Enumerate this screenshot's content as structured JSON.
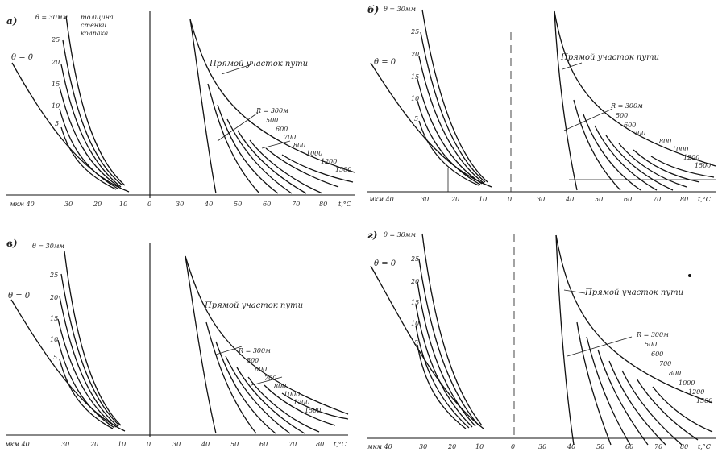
{
  "panels": [
    {
      "id": "a",
      "letter": "a)",
      "theta_label": "θ = 0",
      "wall_label": "θ = 30мм",
      "wall_note": [
        "толщина",
        "стенки",
        "колпака"
      ],
      "theta_ticks": [
        "25",
        "20",
        "15",
        "10",
        "5"
      ],
      "straight_label": "Прямой участок пути",
      "radius_labels": [
        "R = 300м",
        "500",
        "600",
        "700",
        "800",
        "1000",
        "1200",
        "1500"
      ],
      "x_left_ticks": [
        "мкм 40",
        "30",
        "20",
        "10"
      ],
      "x_center": "0",
      "x_right_ticks": [
        "30",
        "40",
        "50",
        "60",
        "70",
        "80"
      ],
      "x_right_unit": "t,°C"
    },
    {
      "id": "b",
      "letter": "б)",
      "theta_label": "θ = 0",
      "wall_label": "θ = 30мм",
      "theta_ticks": [
        "25",
        "20",
        "15",
        "10",
        "5"
      ],
      "straight_label": "Прямой участок пути",
      "radius_labels": [
        "R = 300м",
        "500",
        "600",
        "700",
        "800",
        "1000",
        "1200",
        "1500"
      ],
      "x_left_ticks": [
        "мкм 40",
        "30",
        "20",
        "10"
      ],
      "x_center": "0",
      "x_right_ticks": [
        "30",
        "40",
        "50",
        "60",
        "70",
        "80"
      ],
      "x_right_unit": "t,°C"
    },
    {
      "id": "v",
      "letter": "в)",
      "theta_label": "θ = 0",
      "wall_label": "θ = 30мм",
      "theta_ticks": [
        "25",
        "20",
        "15",
        "10",
        "5"
      ],
      "straight_label": "Прямой участок пути",
      "radius_labels": [
        "R = 300м",
        "500",
        "600",
        "700",
        "800",
        "1000",
        "1200",
        "1500"
      ],
      "x_left_ticks": [
        "мкм 40",
        "30",
        "20",
        "10"
      ],
      "x_center": "0",
      "x_right_ticks": [
        "30",
        "40",
        "50",
        "60",
        "70",
        "80"
      ],
      "x_right_unit": "t,°C"
    },
    {
      "id": "g",
      "letter": "г)",
      "theta_label": "θ = 0",
      "wall_label": "θ = 30мм",
      "theta_ticks": [
        "25",
        "20",
        "15",
        "10",
        "5"
      ],
      "straight_label": "Прямой участок пути",
      "radius_labels": [
        "R = 300м",
        "500",
        "600",
        "700",
        "800",
        "1000",
        "1200",
        "1500"
      ],
      "x_left_ticks": [
        "мкм 40",
        "30",
        "20",
        "10"
      ],
      "x_center": "0",
      "x_right_ticks": [
        "30",
        "40",
        "50",
        "60",
        "70",
        "80"
      ],
      "x_right_unit": "t,°C"
    }
  ]
}
